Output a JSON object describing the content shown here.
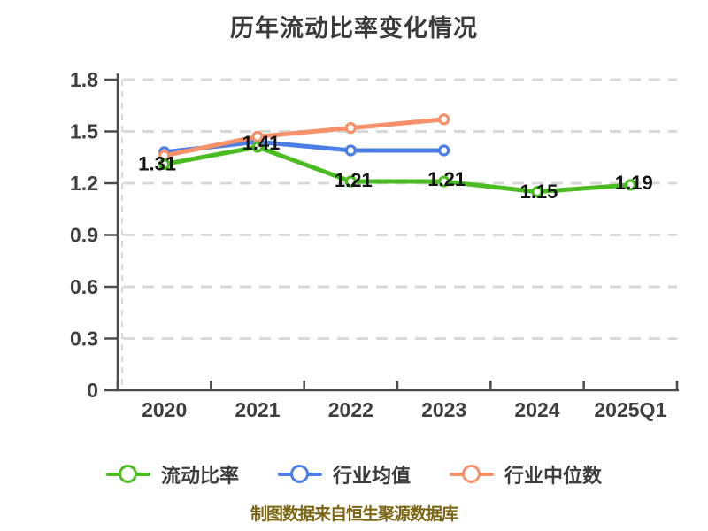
{
  "title": "历年流动比率变化情况",
  "footer": "制图数据来自恒生聚源数据库",
  "chart_data": {
    "type": "line",
    "title": "历年流动比率变化情况",
    "categories": [
      "2020",
      "2021",
      "2022",
      "2023",
      "2024",
      "2025Q1"
    ],
    "series": [
      {
        "key": "current-ratio",
        "name": "流动比率",
        "color": "#4abc21",
        "values": [
          1.31,
          1.41,
          1.21,
          1.21,
          1.15,
          1.19
        ],
        "point_labels": [
          "1.31",
          "1.41",
          "1.21",
          "1.21",
          "1.15",
          "1.19"
        ]
      },
      {
        "key": "industry-mean",
        "name": "行业均值",
        "color": "#4b7fe6",
        "values": [
          1.38,
          1.44,
          1.39,
          1.39,
          null,
          null
        ],
        "point_labels": null
      },
      {
        "key": "industry-median",
        "name": "行业中位数",
        "color": "#f6916a",
        "values": [
          1.36,
          1.47,
          1.52,
          1.57,
          null,
          null
        ],
        "point_labels": null
      }
    ],
    "ylim": [
      0,
      1.8
    ],
    "y_ticks": [
      0,
      0.3,
      0.6,
      0.9,
      1.2,
      1.5,
      1.8
    ],
    "xlabel": "",
    "ylabel": "",
    "grid": "horizontal-dashed",
    "legend_position": "bottom",
    "marker": "circle-white-fill",
    "colors": {
      "axis": "#4c4c4c",
      "grid": "#d8d8d8",
      "tick_label": "#3f3f3f",
      "point_label": "#141414",
      "title": "#3b3b3b",
      "footer_text": "#7c6514"
    }
  }
}
